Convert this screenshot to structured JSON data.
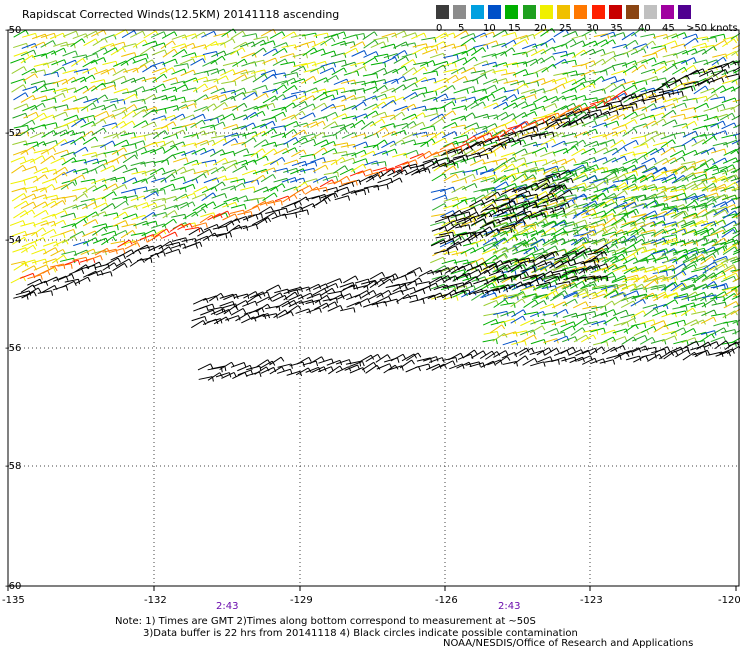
{
  "title": "Rapidscat Corrected Winds(12.5KM) 20141118 ascending",
  "legend": {
    "colors": [
      "#3c3c3c",
      "#8c8c8c",
      "#00a0e0",
      "#0050c8",
      "#00b000",
      "#1ea01e",
      "#f0f000",
      "#f0c000",
      "#ff7800",
      "#ff2000",
      "#c80000",
      "#8b4513",
      "#c0c0c0",
      "#a000a0",
      "#500090"
    ],
    "labels": [
      "0",
      "5",
      "10",
      "15",
      "20",
      "25",
      "30",
      "35",
      "40",
      "45",
      ">50 knots"
    ]
  },
  "axes": {
    "x_ticks": [
      "-135",
      "-132",
      "-129",
      "-126",
      "-123",
      "-120"
    ],
    "y_ticks": [
      "-50",
      "-52",
      "-54",
      "-56",
      "-58",
      "-60"
    ]
  },
  "pass_times": [
    "2:43",
    "2:43"
  ],
  "notes": [
    "Note: 1) Times are GMT 2)Times along bottom correspond to measurement at ~50S",
    "3)Data buffer is 22 hrs from 20141118 4) Black circles indicate possible contamination"
  ],
  "credit": "NOAA/NESDIS/Office of Research and Applications"
}
